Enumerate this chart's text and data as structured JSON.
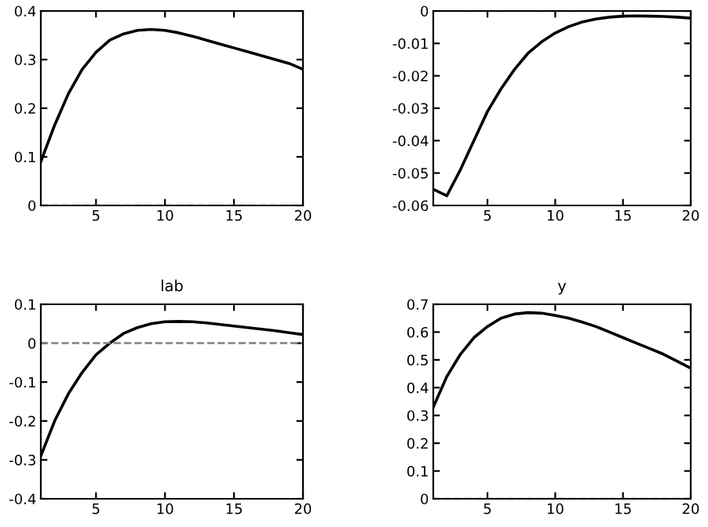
{
  "chart_data": [
    {
      "type": "line",
      "x": [
        1,
        2,
        3,
        4,
        5,
        6,
        7,
        8,
        9,
        10,
        11,
        12,
        13,
        14,
        15,
        16,
        17,
        18,
        19,
        20
      ],
      "series": [
        {
          "color": "#000000",
          "values": [
            0.09,
            0.165,
            0.23,
            0.28,
            0.315,
            0.34,
            0.353,
            0.36,
            0.362,
            0.36,
            0.355,
            0.348,
            0.34,
            0.332,
            0.324,
            0.316,
            0.308,
            0.3,
            0.292,
            0.28
          ]
        }
      ],
      "xlim": [
        1,
        20
      ],
      "xticks": [
        5,
        10,
        15,
        20
      ],
      "ylim": [
        0,
        0.4
      ],
      "yticks": [
        0,
        0.1,
        0.2,
        0.3,
        0.4
      ],
      "ref_lines": [
        {
          "axis": "y",
          "value": 0,
          "color": "#808080",
          "line_style": "dashed"
        }
      ],
      "grid": false,
      "legend": false,
      "marker": "none",
      "line_style": "solid"
    },
    {
      "type": "line",
      "x": [
        1,
        2,
        3,
        4,
        5,
        6,
        7,
        8,
        9,
        10,
        11,
        12,
        13,
        14,
        15,
        16,
        17,
        18,
        19,
        20
      ],
      "series": [
        {
          "color": "#000000",
          "values": [
            -0.055,
            -0.057,
            -0.049,
            -0.04,
            -0.031,
            -0.024,
            -0.018,
            -0.013,
            -0.0095,
            -0.0068,
            -0.0048,
            -0.0034,
            -0.0025,
            -0.0019,
            -0.0016,
            -0.0015,
            -0.0016,
            -0.0017,
            -0.0019,
            -0.0022
          ]
        }
      ],
      "xlim": [
        1,
        20
      ],
      "xticks": [
        5,
        10,
        15,
        20
      ],
      "ylim": [
        -0.06,
        0
      ],
      "yticks": [
        -0.06,
        -0.05,
        -0.04,
        -0.03,
        -0.02,
        -0.01,
        0
      ],
      "ref_lines": [
        {
          "axis": "y",
          "value": 0,
          "color": "#808080",
          "line_style": "dashed"
        }
      ],
      "grid": false,
      "legend": false,
      "marker": "none",
      "line_style": "solid"
    },
    {
      "type": "line",
      "title": "lab",
      "x": [
        1,
        2,
        3,
        4,
        5,
        6,
        7,
        8,
        9,
        10,
        11,
        12,
        13,
        14,
        15,
        16,
        17,
        18,
        19,
        20
      ],
      "series": [
        {
          "color": "#000000",
          "values": [
            -0.29,
            -0.2,
            -0.13,
            -0.075,
            -0.03,
            0.0,
            0.025,
            0.04,
            0.05,
            0.055,
            0.056,
            0.055,
            0.052,
            0.048,
            0.044,
            0.04,
            0.036,
            0.032,
            0.027,
            0.022
          ]
        }
      ],
      "xlim": [
        1,
        20
      ],
      "xticks": [
        5,
        10,
        15,
        20
      ],
      "ylim": [
        -0.4,
        0.1
      ],
      "yticks": [
        -0.4,
        -0.3,
        -0.2,
        -0.1,
        0,
        0.1
      ],
      "ref_lines": [
        {
          "axis": "y",
          "value": 0,
          "color": "#808080",
          "line_style": "dashed"
        }
      ],
      "grid": false,
      "legend": false,
      "marker": "none",
      "line_style": "solid"
    },
    {
      "type": "line",
      "title": "y",
      "x": [
        1,
        2,
        3,
        4,
        5,
        6,
        7,
        8,
        9,
        10,
        11,
        12,
        13,
        14,
        15,
        16,
        17,
        18,
        19,
        20
      ],
      "series": [
        {
          "color": "#000000",
          "values": [
            0.33,
            0.44,
            0.52,
            0.58,
            0.62,
            0.65,
            0.665,
            0.67,
            0.668,
            0.66,
            0.65,
            0.636,
            0.62,
            0.6,
            0.58,
            0.56,
            0.54,
            0.52,
            0.495,
            0.47
          ]
        }
      ],
      "xlim": [
        1,
        20
      ],
      "xticks": [
        5,
        10,
        15,
        20
      ],
      "ylim": [
        0,
        0.7
      ],
      "yticks": [
        0,
        0.1,
        0.2,
        0.3,
        0.4,
        0.5,
        0.6,
        0.7
      ],
      "ref_lines": [
        {
          "axis": "y",
          "value": 0,
          "color": "#808080",
          "line_style": "dashed"
        }
      ],
      "grid": false,
      "legend": false,
      "marker": "none",
      "line_style": "solid"
    }
  ]
}
